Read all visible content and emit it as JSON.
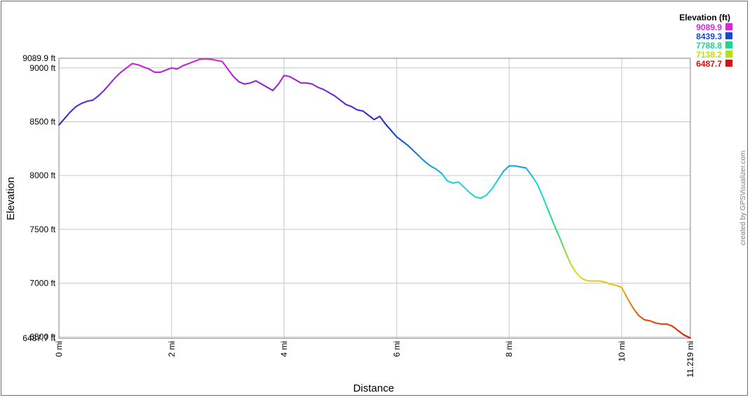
{
  "chart_data": {
    "type": "line",
    "xlabel": "Distance",
    "ylabel": "Elevation",
    "xlim": [
      0,
      11.219
    ],
    "ylim": [
      6487.7,
      9089.9
    ],
    "grid": true,
    "x_ticks": [
      {
        "value": 0,
        "label": "0 mi"
      },
      {
        "value": 2,
        "label": "2 mi"
      },
      {
        "value": 4,
        "label": "4 mi"
      },
      {
        "value": 6,
        "label": "6 mi"
      },
      {
        "value": 8,
        "label": "8 mi"
      },
      {
        "value": 10,
        "label": "10 mi"
      },
      {
        "value": 11.219,
        "label": "11.219 mi"
      }
    ],
    "y_ticks": [
      {
        "value": 9089.9,
        "label": "9089.9 ft"
      },
      {
        "value": 9000,
        "label": "9000 ft"
      },
      {
        "value": 8500,
        "label": "8500 ft"
      },
      {
        "value": 8000,
        "label": "8000 ft"
      },
      {
        "value": 7500,
        "label": "7500 ft"
      },
      {
        "value": 7000,
        "label": "7000 ft"
      },
      {
        "value": 6500,
        "label": "6500 ft"
      },
      {
        "value": 6487.7,
        "label": "6487.7 ft"
      }
    ],
    "legend": {
      "title": "Elevation (ft)",
      "placement": "top-right",
      "entries": [
        {
          "label": "9089.9",
          "color": "#e020e0"
        },
        {
          "label": "8439.3",
          "color": "#1848d8"
        },
        {
          "label": "7788.8",
          "color": "#18d890"
        },
        {
          "label": "7138.2",
          "color": "#b8e010"
        },
        {
          "label": "6487.7",
          "color": "#e01010"
        }
      ]
    },
    "series": [
      {
        "x": [
          0,
          0.1,
          0.2,
          0.3,
          0.4,
          0.5,
          0.6,
          0.7,
          0.8,
          0.9,
          1.0,
          1.1,
          1.2,
          1.3,
          1.4,
          1.5,
          1.6,
          1.7,
          1.8,
          1.9,
          2.0,
          2.1,
          2.2,
          2.3,
          2.4,
          2.5,
          2.6,
          2.7,
          2.8,
          2.9,
          3.0,
          3.1,
          3.2,
          3.3,
          3.4,
          3.5,
          3.6,
          3.7,
          3.8,
          3.9,
          4.0,
          4.1,
          4.2,
          4.3,
          4.4,
          4.5,
          4.6,
          4.7,
          4.8,
          4.9,
          5.0,
          5.1,
          5.2,
          5.3,
          5.4,
          5.5,
          5.6,
          5.7,
          5.8,
          5.9,
          6.0,
          6.1,
          6.2,
          6.3,
          6.4,
          6.5,
          6.6,
          6.7,
          6.8,
          6.9,
          7.0,
          7.1,
          7.2,
          7.3,
          7.4,
          7.5,
          7.6,
          7.7,
          7.8,
          7.9,
          8.0,
          8.1,
          8.2,
          8.3,
          8.4,
          8.5,
          8.6,
          8.7,
          8.8,
          8.9,
          9.0,
          9.1,
          9.2,
          9.3,
          9.4,
          9.5,
          9.6,
          9.7,
          9.8,
          9.9,
          10.0,
          10.1,
          10.2,
          10.3,
          10.4,
          10.5,
          10.6,
          10.7,
          10.8,
          10.9,
          11.0,
          11.1,
          11.219
        ],
        "y": [
          8470,
          8530,
          8590,
          8640,
          8670,
          8690,
          8700,
          8740,
          8790,
          8850,
          8910,
          8960,
          9000,
          9040,
          9030,
          9010,
          8990,
          8960,
          8960,
          8980,
          9000,
          8990,
          9020,
          9040,
          9060,
          9080,
          9085,
          9080,
          9070,
          9060,
          8990,
          8920,
          8870,
          8850,
          8860,
          8880,
          8850,
          8820,
          8790,
          8850,
          8930,
          8920,
          8890,
          8860,
          8860,
          8850,
          8820,
          8800,
          8770,
          8740,
          8700,
          8660,
          8640,
          8610,
          8600,
          8560,
          8520,
          8550,
          8480,
          8420,
          8360,
          8320,
          8280,
          8230,
          8180,
          8130,
          8090,
          8060,
          8020,
          7950,
          7930,
          7940,
          7890,
          7840,
          7800,
          7790,
          7820,
          7880,
          7960,
          8040,
          8090,
          8090,
          8080,
          8070,
          8000,
          7920,
          7800,
          7670,
          7540,
          7420,
          7290,
          7170,
          7090,
          7040,
          7020,
          7020,
          7020,
          7010,
          6990,
          6980,
          6960,
          6860,
          6770,
          6700,
          6660,
          6650,
          6630,
          6620,
          6620,
          6600,
          6560,
          6520,
          6490
        ]
      }
    ]
  },
  "credit": "created by GPSVisualizer.com"
}
